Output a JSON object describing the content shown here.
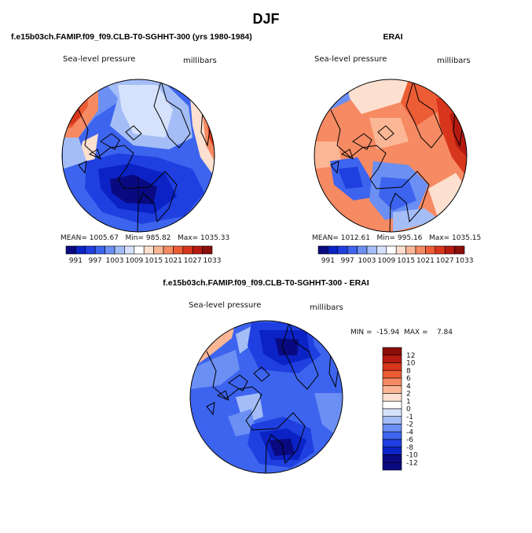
{
  "page": {
    "season": "DJF",
    "left_title": "f.e15b03ch.FAMIP.f09_f09.CLB-T0-SGHHT-300 (yrs 1980-1984)",
    "right_title": "ERAI",
    "bottom_title": "f.e15b03ch.FAMIP.f09_f09.CLB-T0-SGHHT-300 - ERAI"
  },
  "panels": {
    "model": {
      "variable": "Sea-level pressure",
      "units": "millibars",
      "stats": "MEAN= 1005.67   Min= 985.82   Max= 1035.33"
    },
    "obs": {
      "variable": "Sea-level pressure",
      "units": "millibars",
      "stats": "MEAN= 1012.61   Min= 995.16   Max= 1035.15"
    },
    "diff": {
      "variable": "Sea-level pressure",
      "units": "millibars",
      "stats": "MIN =  -15.94  MAX =    7.84"
    }
  },
  "colorbars": {
    "slp_labels": [
      "991",
      "997",
      "1003",
      "1009",
      "1015",
      "1021",
      "1027",
      "1033"
    ],
    "slp_colors": [
      "#0a0a80",
      "#0b22c4",
      "#1f3fe0",
      "#3d64ee",
      "#6b8ff3",
      "#a4bdf7",
      "#d6e2fb",
      "#ffffff",
      "#fde0cf",
      "#fbb795",
      "#f68a63",
      "#ec5d36",
      "#d8361c",
      "#b51a10",
      "#8a0e0a"
    ],
    "diff_labels": [
      "12",
      "10",
      "8",
      "6",
      "4",
      "2",
      "1",
      "0",
      "-1",
      "-2",
      "-4",
      "-6",
      "-8",
      "-10",
      "-12"
    ],
    "diff_colors": [
      "#8a0e0a",
      "#b51a10",
      "#d8361c",
      "#ec5d36",
      "#f68a63",
      "#fbb795",
      "#fde0cf",
      "#ffffff",
      "#d6e2fb",
      "#a4bdf7",
      "#6b8ff3",
      "#3d64ee",
      "#1f3fe0",
      "#0b22c4",
      "#0a0a80",
      "#0a0a80"
    ]
  }
}
